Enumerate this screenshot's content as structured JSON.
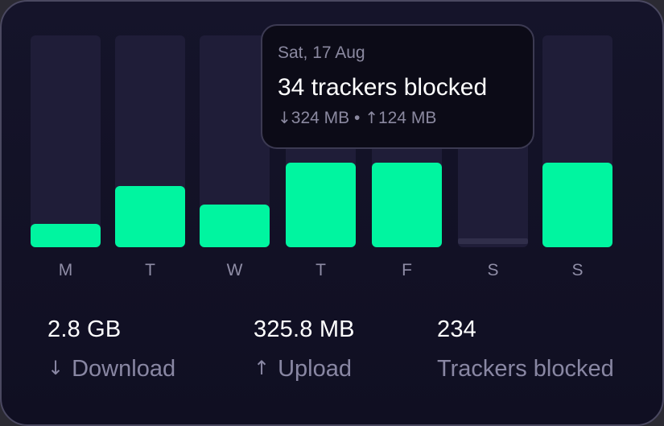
{
  "chart_data": {
    "type": "bar",
    "categories": [
      "M",
      "T",
      "W",
      "T",
      "F",
      "S",
      "S"
    ],
    "values": [
      11,
      29,
      20,
      40,
      40,
      2,
      40
    ],
    "ylim": [
      0,
      100
    ]
  },
  "tooltip": {
    "date": "Sat, 17 Aug",
    "title": "34 trackers blocked",
    "download": "324 MB",
    "separator": "•",
    "upload": "124 MB"
  },
  "stats": {
    "download": {
      "value": "2.8 GB",
      "label": "Download",
      "icon": "arrow-down-icon"
    },
    "upload": {
      "value": "325.8 MB",
      "label": "Upload",
      "icon": "arrow-up-icon"
    },
    "trackers": {
      "value": "234",
      "label": "Trackers blocked"
    }
  },
  "colors": {
    "bar": "#00f5a0",
    "bar_empty": "#302e4a",
    "track": "#1f1d38",
    "background": "#100f22"
  }
}
